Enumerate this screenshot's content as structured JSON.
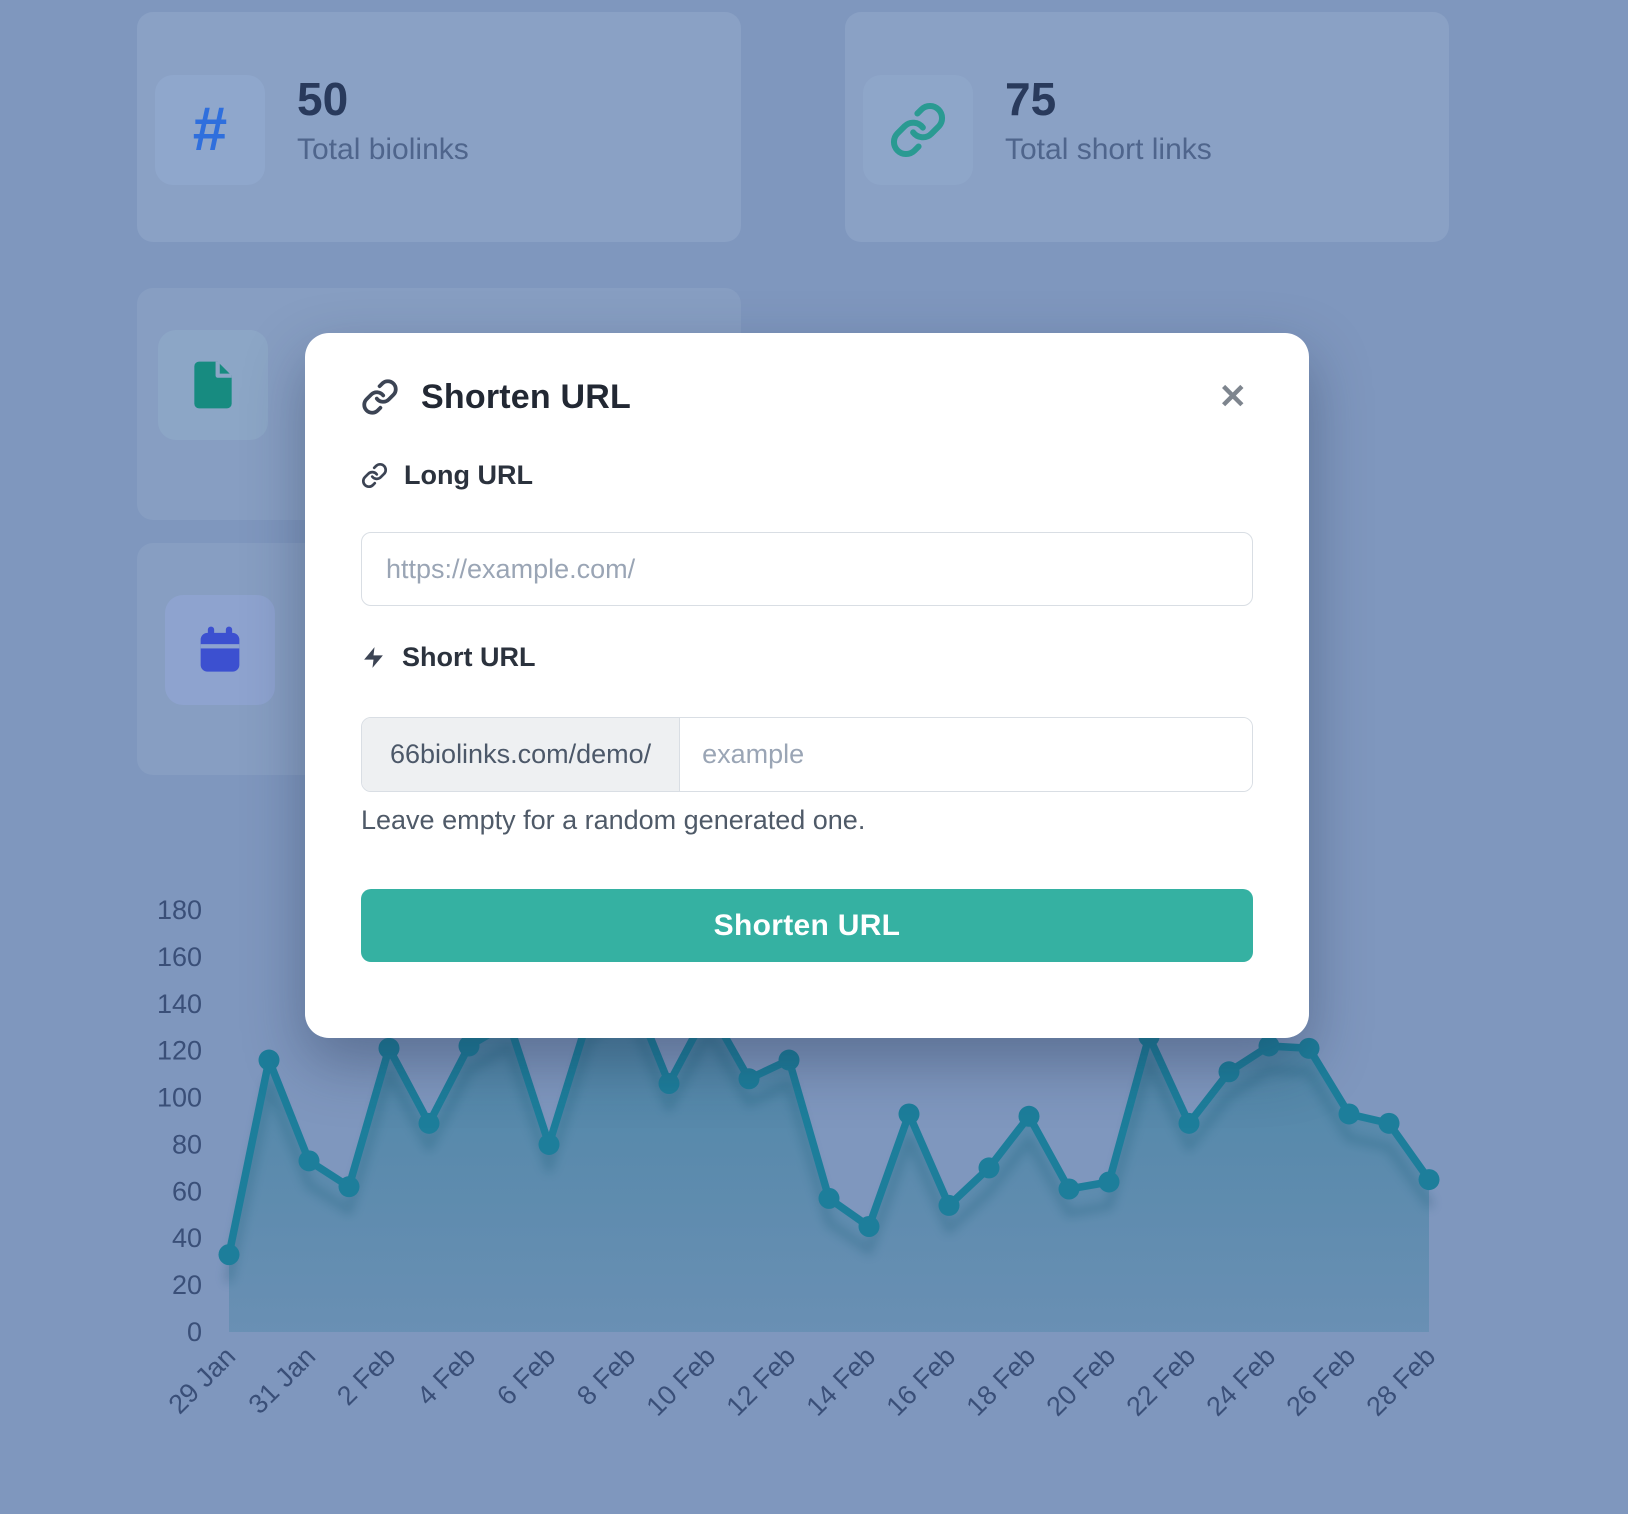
{
  "stats": [
    {
      "icon": "hash-icon",
      "value": "50",
      "label": "Total biolinks",
      "icon_color": "#2f6fdd"
    },
    {
      "icon": "link-icon",
      "value": "75",
      "label": "Total short links",
      "icon_color": "#2a9a92"
    }
  ],
  "background_icons": [
    {
      "icon": "file-icon",
      "color": "#178b80"
    },
    {
      "icon": "calendar-icon",
      "color": "#3c50d0"
    }
  ],
  "modal": {
    "title": "Shorten URL",
    "close_glyph": "✕",
    "long_url_label": "Long URL",
    "long_url_placeholder": "https://example.com/",
    "short_url_label": "Short URL",
    "short_url_prefix": "66biolinks.com/demo/",
    "short_url_placeholder": "example",
    "hint": "Leave empty for a random generated one.",
    "submit_label": "Shorten URL"
  },
  "colors": {
    "backdrop": "#7f97be",
    "card": "#8aa1c5",
    "accent_teal": "#35b1a2",
    "chart_line": "#1d7e9b",
    "stat_value": "#293a5c",
    "hash_blue": "#2f6fdd",
    "calendar_blue": "#3c50d0",
    "file_teal": "#178b80"
  },
  "chart_data": {
    "type": "line",
    "area": true,
    "grid": false,
    "x": [
      "29 Jan",
      "30 Jan",
      "31 Jan",
      "1 Feb",
      "2 Feb",
      "3 Feb",
      "4 Feb",
      "5 Feb",
      "6 Feb",
      "7 Feb",
      "8 Feb",
      "9 Feb",
      "10 Feb",
      "11 Feb",
      "12 Feb",
      "13 Feb",
      "14 Feb",
      "15 Feb",
      "16 Feb",
      "17 Feb",
      "18 Feb",
      "19 Feb",
      "20 Feb",
      "21 Feb",
      "22 Feb",
      "23 Feb",
      "24 Feb",
      "25 Feb",
      "26 Feb",
      "27 Feb",
      "28 Feb"
    ],
    "values": [
      33,
      116,
      73,
      62,
      121,
      89,
      122,
      132,
      80,
      135,
      148,
      106,
      138,
      108,
      116,
      57,
      45,
      93,
      54,
      70,
      92,
      61,
      64,
      126,
      89,
      111,
      122,
      121,
      93,
      89,
      65
    ],
    "x_tick_labels": [
      "29 Jan",
      "31 Jan",
      "2 Feb",
      "4 Feb",
      "6 Feb",
      "8 Feb",
      "10 Feb",
      "12 Feb",
      "14 Feb",
      "16 Feb",
      "18 Feb",
      "20 Feb",
      "22 Feb",
      "24 Feb",
      "26 Feb",
      "28 Feb"
    ],
    "yticks": [
      0,
      20,
      40,
      60,
      80,
      100,
      120,
      140,
      160,
      180
    ],
    "ylim": [
      0,
      180
    ],
    "xlabel": "",
    "ylabel": "",
    "title": "",
    "legend": false,
    "line_color": "#1d7e9b",
    "tick_color": "#3a4f78"
  }
}
